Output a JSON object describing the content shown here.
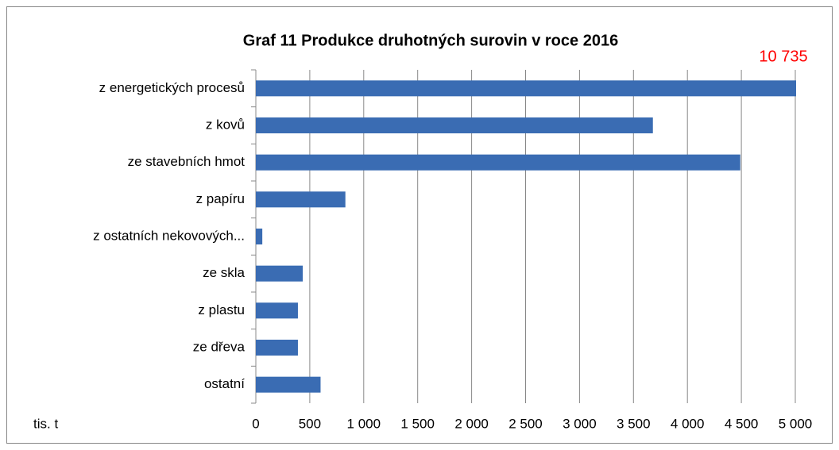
{
  "chart_data": {
    "type": "bar",
    "orientation": "horizontal",
    "title": "Graf 11 Produkce druhotných surovin v roce 2016",
    "xlabel": "tis. t",
    "categories": [
      "z energetických procesů",
      "z kovů",
      "ze stavebních hmot",
      "z papíru",
      "z ostatních nekovových...",
      "ze skla",
      "z plastu",
      "ze dřeva",
      "ostatní"
    ],
    "values": [
      10735,
      3680,
      4490,
      830,
      60,
      435,
      390,
      390,
      600
    ],
    "value_labels": [
      "10 735",
      null,
      null,
      null,
      null,
      null,
      null,
      null,
      null
    ],
    "color": "#3a6cb3",
    "value_label_color": "#ff0000",
    "xlim": [
      0,
      5000
    ],
    "xticks": [
      0,
      500,
      {
        "value": 1000,
        "label": "1 000"
      },
      {
        "value": 1500,
        "label": "1 500"
      },
      {
        "value": 2000,
        "label": "2 000"
      },
      {
        "value": 2500,
        "label": "2 500"
      },
      {
        "value": 3000,
        "label": "3 000"
      },
      {
        "value": 3500,
        "label": "3 500"
      },
      {
        "value": 4000,
        "label": "4 000"
      },
      {
        "value": 4500,
        "label": "4 500"
      },
      {
        "value": 5000,
        "label": "5 000"
      }
    ],
    "grid": true
  }
}
